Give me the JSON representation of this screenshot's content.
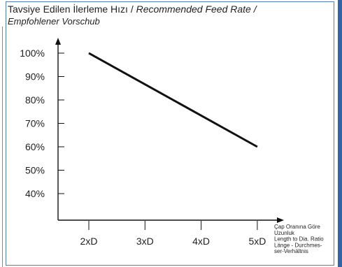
{
  "title": {
    "main": "Tavsiye Edilen İlerleme Hızı / ",
    "english": "Recommended Feed Rate /",
    "german": "Empfohlener Vorschub"
  },
  "colors": {
    "panel_border": "#4f7db4",
    "rail": "#2f66a8",
    "line": "#111111"
  },
  "chart_data": {
    "type": "line",
    "categories": [
      "2xD",
      "3xD",
      "4xD",
      "5xD"
    ],
    "ytick_labels": [
      "100%",
      "90%",
      "80%",
      "70%",
      "60%",
      "50%",
      "40%"
    ],
    "ylim": [
      35,
      108
    ],
    "series": [
      {
        "x": [
          "2xD",
          "5xD"
        ],
        "values": [
          100,
          60
        ]
      }
    ],
    "xlabel_lines": [
      "Çap Oranına Göre",
      "Uzunluk",
      "Length to Dia. Ratio",
      "Länge - Durchmes-",
      "ser-Verhältnis"
    ],
    "grid": false
  }
}
